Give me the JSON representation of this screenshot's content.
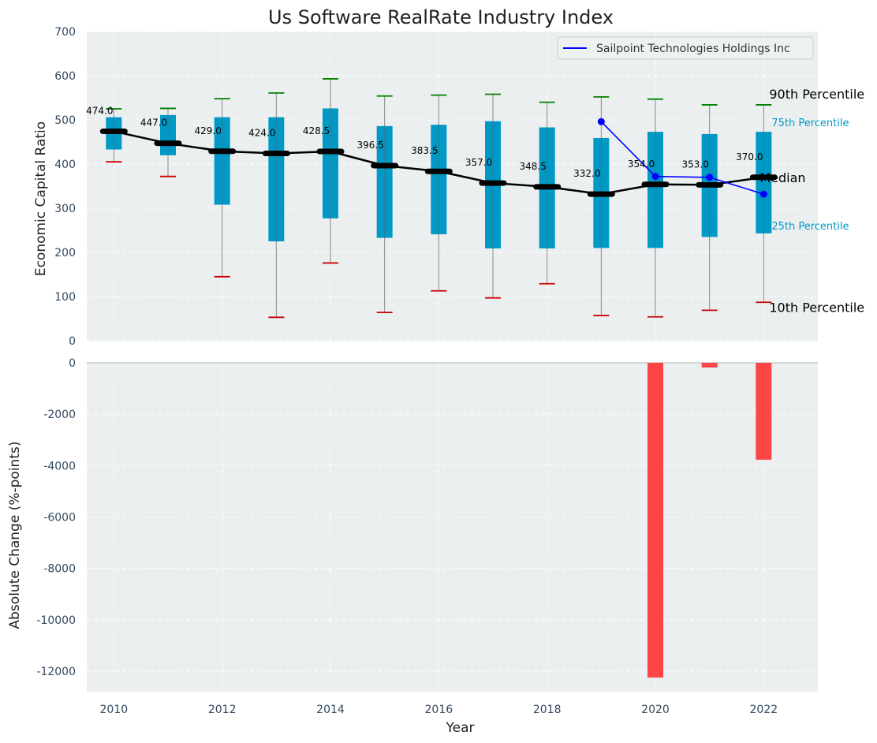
{
  "chart_data": [
    {
      "type": "box",
      "title": "Us Software RealRate Industry Index",
      "ylabel": "Economic Capital Ratio",
      "xlabel": "",
      "ylim": [
        0,
        700
      ],
      "yticks": [
        0,
        100,
        200,
        300,
        400,
        500,
        600,
        700
      ],
      "grid": true,
      "legend_position": "top-right",
      "colors": {
        "box": "#0099c6",
        "median": "#000000",
        "whisker": "#888888",
        "p90_cap": "#008000",
        "p10_cap": "#cc0000",
        "company": "#0000ff",
        "background": "#ebeff0"
      },
      "x": [
        2010,
        2011,
        2012,
        2013,
        2014,
        2015,
        2016,
        2017,
        2018,
        2019,
        2020,
        2021,
        2022
      ],
      "p10": [
        405,
        372,
        145,
        53,
        176,
        64,
        113,
        97,
        129,
        57,
        54,
        69,
        87
      ],
      "q1": [
        433,
        420,
        308,
        225,
        277,
        233,
        241,
        209,
        209,
        210,
        210,
        235,
        243
      ],
      "median": [
        474.0,
        447.0,
        429.0,
        424.0,
        428.5,
        396.5,
        383.5,
        357.0,
        348.5,
        332.0,
        354.0,
        353.0,
        370.0
      ],
      "median_labels": [
        "474.0",
        "447.0",
        "429.0",
        "424.0",
        "428.5",
        "396.5",
        "383.5",
        "357.0",
        "348.5",
        "332.0",
        "354.0",
        "353.0",
        "370.0"
      ],
      "q3": [
        506,
        511,
        506,
        506,
        526,
        486,
        489,
        497,
        483,
        459,
        473,
        468,
        473
      ],
      "p90": [
        525,
        526,
        548,
        561,
        593,
        554,
        556,
        558,
        540,
        552,
        547,
        534,
        534
      ],
      "series": [
        {
          "name": "Sailpoint Technologies Holdings Inc",
          "x": [
            2019,
            2020,
            2021,
            2022
          ],
          "values": [
            496,
            372,
            370,
            332
          ]
        }
      ],
      "annotations": {
        "p90": "90th Percentile",
        "q3": "75th Percentile",
        "median": "Median",
        "q1": "25th Percentile",
        "p10": "10th Percentile"
      }
    },
    {
      "type": "bar",
      "ylabel": "Absolute Change (%-points)",
      "xlabel": "Year",
      "ylim": [
        -12800,
        0
      ],
      "yticks": [
        0,
        -2000,
        -4000,
        -6000,
        -8000,
        -10000,
        -12000
      ],
      "xticks": [
        2010,
        2012,
        2014,
        2016,
        2018,
        2020,
        2022
      ],
      "grid": true,
      "color": "#ff3b3b",
      "categories": [
        2020,
        2021,
        2022
      ],
      "values": [
        -12250,
        -180,
        -3770
      ]
    }
  ]
}
